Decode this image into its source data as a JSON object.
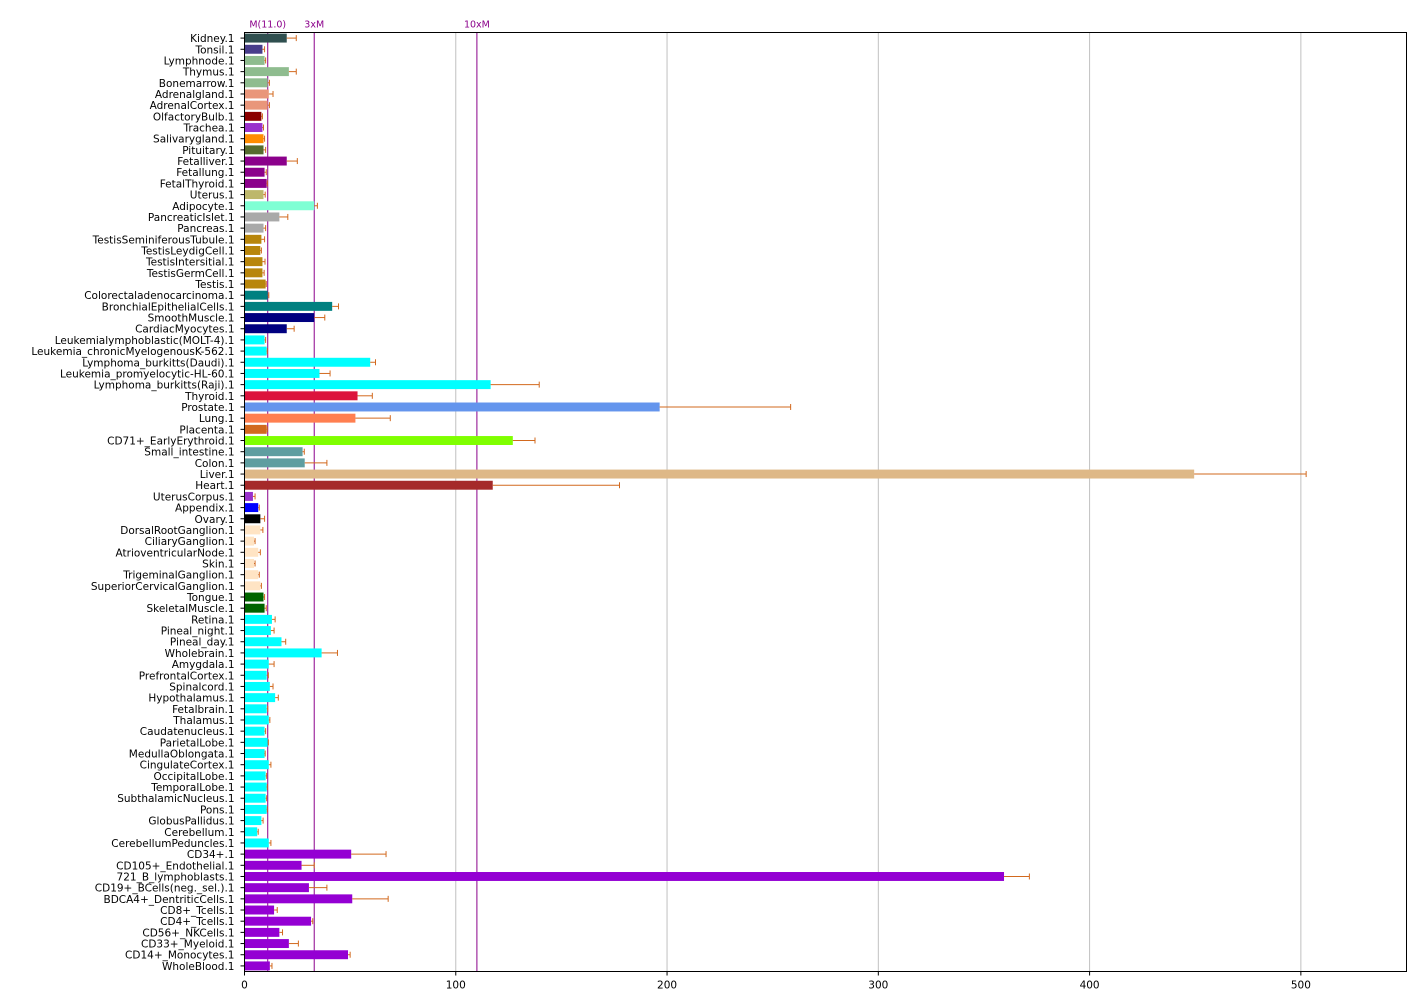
{
  "chart_data": {
    "type": "bar",
    "orientation": "horizontal",
    "xlim": [
      0,
      550
    ],
    "x_ticks": [
      0,
      100,
      200,
      300,
      400,
      500
    ],
    "grid": "vertical",
    "reference_lines": [
      {
        "label": "M(11.0)",
        "value": 11.0,
        "color": "#8b008b"
      },
      {
        "label": "3xM",
        "value": 33.0,
        "color": "#8b008b"
      },
      {
        "label": "10xM",
        "value": 110.0,
        "color": "#8b008b"
      }
    ],
    "error_bar_color": "#d2691e",
    "bars": [
      {
        "label": "Kidney.1",
        "value": 20,
        "error": 4.5,
        "color": "#2f4f4f"
      },
      {
        "label": "Tonsil.1",
        "value": 8.5,
        "error": 1,
        "color": "#483d8b"
      },
      {
        "label": "Lymphnode.1",
        "value": 9.5,
        "error": 0.5,
        "color": "#8fbc8f"
      },
      {
        "label": "Thymus.1",
        "value": 21,
        "error": 3.5,
        "color": "#8fbc8f"
      },
      {
        "label": "Bonemarrow.1",
        "value": 11,
        "error": 0.8,
        "color": "#8fbc8f"
      },
      {
        "label": "Adrenalgland.1",
        "value": 11.5,
        "error": 2,
        "color": "#e9967a"
      },
      {
        "label": "AdrenalCortex.1",
        "value": 11,
        "error": 0.8,
        "color": "#e9967a"
      },
      {
        "label": "OlfactoryBulb.1",
        "value": 8,
        "error": 0.5,
        "color": "#8b0000"
      },
      {
        "label": "Trachea.1",
        "value": 8.5,
        "error": 0.5,
        "color": "#9932cc"
      },
      {
        "label": "Salivarygland.1",
        "value": 9,
        "error": 0.5,
        "color": "#ff8c00"
      },
      {
        "label": "Pituitary.1",
        "value": 9,
        "error": 1,
        "color": "#556b2f"
      },
      {
        "label": "Fetalliver.1",
        "value": 20,
        "error": 5,
        "color": "#8b008b"
      },
      {
        "label": "Fetallung.1",
        "value": 9.5,
        "error": 0.8,
        "color": "#8b008b"
      },
      {
        "label": "FetalThyroid.1",
        "value": 10.5,
        "error": 0.3,
        "color": "#8b008b"
      },
      {
        "label": "Uterus.1",
        "value": 9,
        "error": 0.8,
        "color": "#bdb76b"
      },
      {
        "label": "Adipocyte.1",
        "value": 33,
        "error": 1.5,
        "color": "#7fffd4"
      },
      {
        "label": "PancreaticIslet.1",
        "value": 16.5,
        "error": 4,
        "color": "#a9a9a9"
      },
      {
        "label": "Pancreas.1",
        "value": 9,
        "error": 1,
        "color": "#a9a9a9"
      },
      {
        "label": "TestisSeminiferousTubule.1",
        "value": 8,
        "error": 1.5,
        "color": "#b8860b"
      },
      {
        "label": "TestisLeydigCell.1",
        "value": 7.5,
        "error": 0.5,
        "color": "#b8860b"
      },
      {
        "label": "TestisIntersitial.1",
        "value": 8.5,
        "error": 1.2,
        "color": "#b8860b"
      },
      {
        "label": "TestisGermCell.1",
        "value": 8.5,
        "error": 0.8,
        "color": "#b8860b"
      },
      {
        "label": "Testis.1",
        "value": 10,
        "error": 0.3,
        "color": "#b8860b"
      },
      {
        "label": "Colorectaladenocarcinoma.1",
        "value": 11,
        "error": 0.5,
        "color": "#008080"
      },
      {
        "label": "BronchialEpithelialCells.1",
        "value": 41.5,
        "error": 3,
        "color": "#008080"
      },
      {
        "label": "SmoothMuscle.1",
        "value": 33,
        "error": 5,
        "color": "#000080"
      },
      {
        "label": "CardiacMyocytes.1",
        "value": 20,
        "error": 3.5,
        "color": "#000080"
      },
      {
        "label": "Leukemialymphoblastic(MOLT-4).1",
        "value": 9.5,
        "error": 0.5,
        "color": "#00ffff"
      },
      {
        "label": "Leukemia_chronicMyelogenousK-562.1",
        "value": 10.5,
        "error": 0.3,
        "color": "#00ffff"
      },
      {
        "label": "Lymphoma_burkitts(Daudi).1",
        "value": 59.5,
        "error": 2.5,
        "color": "#00ffff"
      },
      {
        "label": "Leukemia_promyelocytic-HL-60.1",
        "value": 35.5,
        "error": 5,
        "color": "#00ffff"
      },
      {
        "label": "Lymphoma_burkitts(Raji).1",
        "value": 116.5,
        "error": 23,
        "color": "#00ffff"
      },
      {
        "label": "Thyroid.1",
        "value": 53.5,
        "error": 7,
        "color": "#dc143c"
      },
      {
        "label": "Prostate.1",
        "value": 196.5,
        "error": 62,
        "color": "#6495ed"
      },
      {
        "label": "Lung.1",
        "value": 52.5,
        "error": 16.5,
        "color": "#ff7f50"
      },
      {
        "label": "Placenta.1",
        "value": 10.5,
        "error": 0.3,
        "color": "#d2691e"
      },
      {
        "label": "CD71+_EarlyErythroid.1",
        "value": 127,
        "error": 10.5,
        "color": "#7fff00"
      },
      {
        "label": "Small_intestine.1",
        "value": 27.5,
        "error": 0.8,
        "color": "#5f9ea0"
      },
      {
        "label": "Colon.1",
        "value": 28.5,
        "error": 10.5,
        "color": "#5f9ea0"
      },
      {
        "label": "Liver.1",
        "value": 449.5,
        "error": 53,
        "color": "#deb887"
      },
      {
        "label": "Heart.1",
        "value": 117.5,
        "error": 60,
        "color": "#a52a2a"
      },
      {
        "label": "UterusCorpus.1",
        "value": 4,
        "error": 1,
        "color": "#9932cc"
      },
      {
        "label": "Appendix.1",
        "value": 6.5,
        "error": 0.5,
        "color": "#0000ff"
      },
      {
        "label": "Ovary.1",
        "value": 7.5,
        "error": 2,
        "color": "#000000"
      },
      {
        "label": "DorsalRootGanglion.1",
        "value": 7.5,
        "error": 1.2,
        "color": "#ffe4c4"
      },
      {
        "label": "CiliaryGanglion.1",
        "value": 4.5,
        "error": 0.5,
        "color": "#ffe4c4"
      },
      {
        "label": "AtrioventricularNode.1",
        "value": 6.5,
        "error": 1,
        "color": "#ffe4c4"
      },
      {
        "label": "Skin.1",
        "value": 4.5,
        "error": 0.5,
        "color": "#ffe4c4"
      },
      {
        "label": "TrigeminalGanglion.1",
        "value": 6.5,
        "error": 0.5,
        "color": "#ffe4c4"
      },
      {
        "label": "SuperiorCervicalGanglion.1",
        "value": 7.5,
        "error": 0.5,
        "color": "#ffe4c4"
      },
      {
        "label": "Tongue.1",
        "value": 9,
        "error": 0.5,
        "color": "#006400"
      },
      {
        "label": "SkeletalMuscle.1",
        "value": 9.5,
        "error": 0.8,
        "color": "#006400"
      },
      {
        "label": "Retina.1",
        "value": 13,
        "error": 1.5,
        "color": "#00ffff"
      },
      {
        "label": "Pineal_night.1",
        "value": 12.5,
        "error": 1.5,
        "color": "#00ffff"
      },
      {
        "label": "Pineal_day.1",
        "value": 17.5,
        "error": 2,
        "color": "#00ffff"
      },
      {
        "label": "Wholebrain.1",
        "value": 36.5,
        "error": 7.5,
        "color": "#00ffff"
      },
      {
        "label": "Amygdala.1",
        "value": 11.5,
        "error": 2.5,
        "color": "#00ffff"
      },
      {
        "label": "PrefrontalCortex.1",
        "value": 10.5,
        "error": 0.8,
        "color": "#00ffff"
      },
      {
        "label": "Spinalcord.1",
        "value": 12,
        "error": 1.5,
        "color": "#00ffff"
      },
      {
        "label": "Hypothalamus.1",
        "value": 14.5,
        "error": 1.5,
        "color": "#00ffff"
      },
      {
        "label": "Fetalbrain.1",
        "value": 10.5,
        "error": 0.5,
        "color": "#00ffff"
      },
      {
        "label": "Thalamus.1",
        "value": 11.5,
        "error": 0.5,
        "color": "#00ffff"
      },
      {
        "label": "Caudatenucleus.1",
        "value": 9.5,
        "error": 0.5,
        "color": "#00ffff"
      },
      {
        "label": "ParietalLobe.1",
        "value": 11,
        "error": 0.3,
        "color": "#00ffff"
      },
      {
        "label": "MedullaOblongata.1",
        "value": 9.5,
        "error": 0.3,
        "color": "#00ffff"
      },
      {
        "label": "CingulateCortex.1",
        "value": 11.5,
        "error": 1,
        "color": "#00ffff"
      },
      {
        "label": "OccipitalLobe.1",
        "value": 10,
        "error": 0.5,
        "color": "#00ffff"
      },
      {
        "label": "TemporalLobe.1",
        "value": 10.5,
        "error": 0.3,
        "color": "#00ffff"
      },
      {
        "label": "SubthalamicNucleus.1",
        "value": 10,
        "error": 0.5,
        "color": "#00ffff"
      },
      {
        "label": "Pons.1",
        "value": 10.5,
        "error": 0.3,
        "color": "#00ffff"
      },
      {
        "label": "GlobusPallidus.1",
        "value": 8,
        "error": 0.8,
        "color": "#00ffff"
      },
      {
        "label": "Cerebellum.1",
        "value": 6,
        "error": 0.5,
        "color": "#00ffff"
      },
      {
        "label": "CerebellumPeduncles.1",
        "value": 11.5,
        "error": 1,
        "color": "#00ffff"
      },
      {
        "label": "CD34+.1",
        "value": 50.5,
        "error": 16.5,
        "color": "#9400d3"
      },
      {
        "label": "CD105+_Endothelial.1",
        "value": 27,
        "error": 6,
        "color": "#9400d3"
      },
      {
        "label": "721_B_lymphoblasts.1",
        "value": 359.5,
        "error": 12,
        "color": "#9400d3"
      },
      {
        "label": "CD19+_BCells(neg._sel.).1",
        "value": 30.5,
        "error": 8.5,
        "color": "#9400d3"
      },
      {
        "label": "BDCA4+_DentriticCells.1",
        "value": 51,
        "error": 17,
        "color": "#9400d3"
      },
      {
        "label": "CD8+_Tcells.1",
        "value": 14,
        "error": 1.5,
        "color": "#9400d3"
      },
      {
        "label": "CD4+_Tcells.1",
        "value": 31.5,
        "error": 0.8,
        "color": "#9400d3"
      },
      {
        "label": "CD56+_NKCells.1",
        "value": 16.5,
        "error": 1.5,
        "color": "#9400d3"
      },
      {
        "label": "CD33+_Myeloid.1",
        "value": 21,
        "error": 4.5,
        "color": "#9400d3"
      },
      {
        "label": "CD14+_Monocytes.1",
        "value": 49,
        "error": 1,
        "color": "#9400d3"
      },
      {
        "label": "WholeBlood.1",
        "value": 12,
        "error": 1,
        "color": "#9400d3"
      }
    ]
  }
}
